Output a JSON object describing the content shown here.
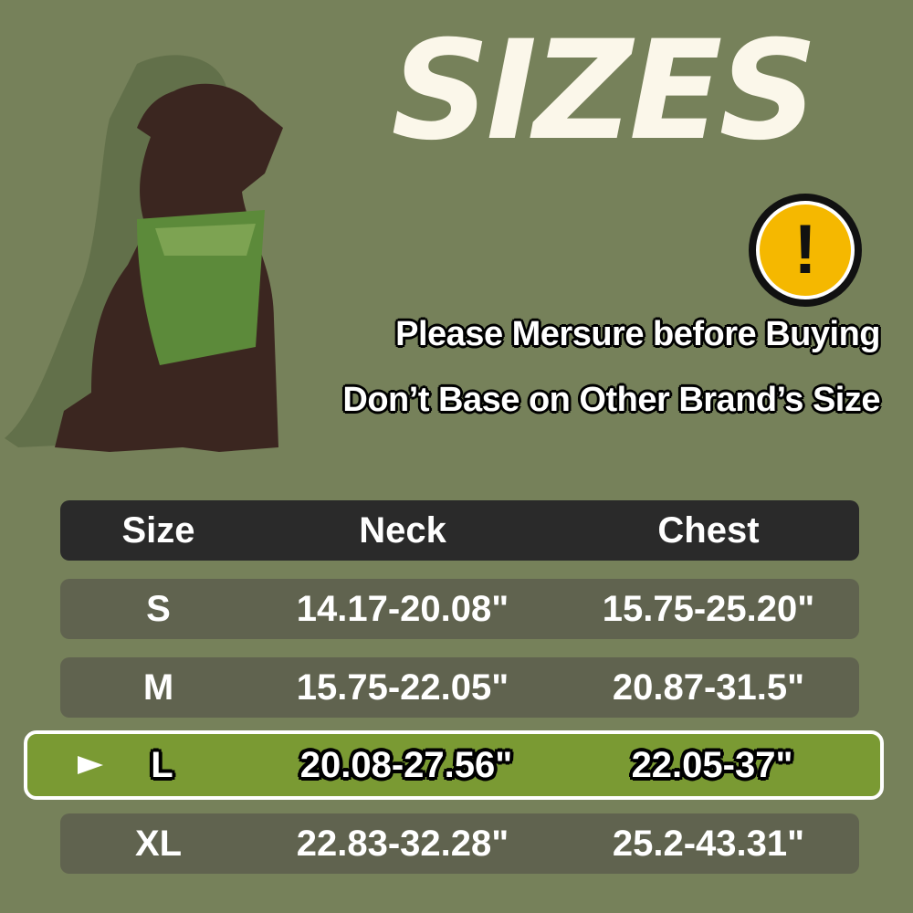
{
  "title": "SIZES",
  "warning_icon": "exclamation-icon",
  "notes": [
    "Please Mersure before Buying",
    "Don’t Base on Other Brand’s Size"
  ],
  "table": {
    "headers": [
      "Size",
      "Neck",
      "Chest"
    ],
    "rows": [
      {
        "size": "S",
        "neck": "14.17-20.08\"",
        "chest": "15.75-25.20\""
      },
      {
        "size": "M",
        "neck": "15.75-22.05\"",
        "chest": "20.87-31.5\""
      },
      {
        "size": "L",
        "neck": "20.08-27.56\"",
        "chest": "22.05-37\"",
        "highlighted": true
      },
      {
        "size": "XL",
        "neck": "22.83-32.28\"",
        "chest": "25.2-43.31\""
      }
    ]
  },
  "colors": {
    "background": "#76815a",
    "row": "#60634f",
    "header": "#2a2a2a",
    "highlight": "#7a9a33",
    "warning": "#f5b800"
  }
}
